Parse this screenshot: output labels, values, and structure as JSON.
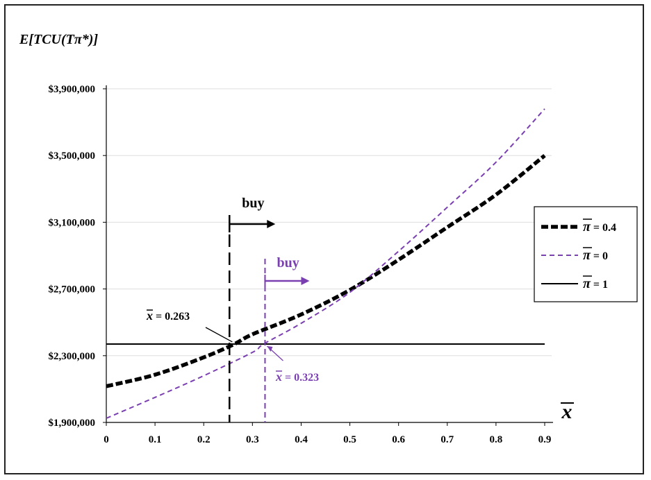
{
  "chart_data": {
    "type": "line",
    "ylabel": "E[TCU(Tπ*)]",
    "xlabel": "x̄",
    "xlim": [
      0,
      0.9
    ],
    "ylim": [
      1900000,
      3900000
    ],
    "x_ticks": [
      0,
      0.1,
      0.2,
      0.3,
      0.4,
      0.5,
      0.6,
      0.7,
      0.8,
      0.9
    ],
    "x_tick_labels": [
      "0",
      "0.1",
      "0.2",
      "0.3",
      "0.4",
      "0.5",
      "0.6",
      "0.7",
      "0.8",
      "0.9"
    ],
    "y_ticks": [
      1900000,
      2300000,
      2700000,
      3100000,
      3500000,
      3900000
    ],
    "y_tick_labels": [
      "$1,900,000",
      "$2,300,000",
      "$2,700,000",
      "$3,100,000",
      "$3,500,000",
      "$3,900,000"
    ],
    "grid": "horizontal",
    "legend_position": "right",
    "series": [
      {
        "name": "π̄ = 0.4",
        "symbol": "π̄",
        "value_label": "= 0.4",
        "style": "thick-dashed",
        "color": "#000000",
        "x": [
          0,
          0.1,
          0.2,
          0.263,
          0.3,
          0.4,
          0.5,
          0.6,
          0.7,
          0.8,
          0.9
        ],
        "y": [
          2117000,
          2186000,
          2290000,
          2370000,
          2428000,
          2547000,
          2694000,
          2875000,
          3070000,
          3265000,
          3500000
        ]
      },
      {
        "name": "π̄ = 0",
        "symbol": "π̄",
        "value_label": "= 0",
        "style": "dashed",
        "color": "#7a3fb0",
        "x": [
          0,
          0.1,
          0.2,
          0.3,
          0.323,
          0.4,
          0.5,
          0.6,
          0.7,
          0.8,
          0.9
        ],
        "y": [
          1925000,
          2050000,
          2180000,
          2320000,
          2370000,
          2494000,
          2680000,
          2926000,
          3190000,
          3460000,
          3780000
        ]
      },
      {
        "name": "π̄ = 1",
        "symbol": "π̄",
        "value_label": "= 1",
        "style": "solid",
        "color": "#000000",
        "x": [
          0,
          0.9
        ],
        "y": [
          2370000,
          2370000
        ]
      }
    ],
    "annotations": [
      {
        "label": "x̄ = 0.263",
        "bar": "x̄",
        "rest": " = 0.263",
        "x": 0.263,
        "color": "#000000"
      },
      {
        "label": "x̄ = 0.323",
        "bar": "x̄",
        "rest": " = 0.323",
        "x": 0.323,
        "color": "#7a3fb0"
      }
    ],
    "arrows": [
      {
        "label": "buy",
        "x": 0.25,
        "color": "#000000"
      },
      {
        "label": "buy",
        "x": 0.323,
        "color": "#7a3fb0"
      }
    ]
  }
}
